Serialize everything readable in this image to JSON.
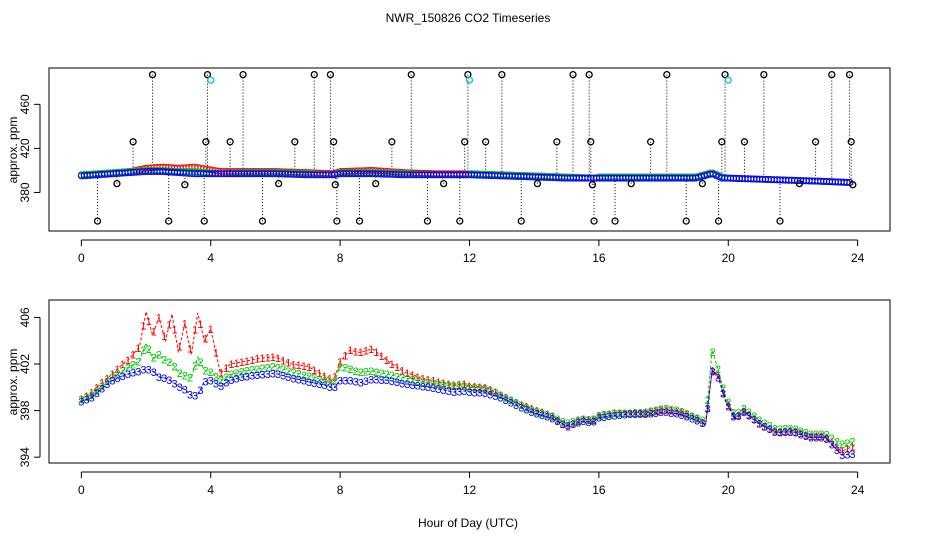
{
  "title": "NWR_150826  CO2 Timeseries",
  "xlabel": "Hour of Day (UTC)",
  "colors": {
    "red": "#ff0000",
    "green": "#00c800",
    "blue": "#0000ff",
    "cyan": "#00c8c8",
    "black": "#000000"
  },
  "chart_data": [
    {
      "type": "scatter",
      "name": "top-panel",
      "ylabel": "approx. ppm",
      "xlim": [
        -1,
        25
      ],
      "ylim": [
        345,
        493
      ],
      "xticks": [
        "0",
        "4",
        "8",
        "12",
        "16",
        "20",
        "24"
      ],
      "xtick_values": [
        0,
        4,
        8,
        12,
        16,
        20,
        24
      ],
      "yticks": [
        "380",
        "420",
        "460"
      ],
      "ytick_values": [
        380,
        420,
        460
      ],
      "base_series": [
        {
          "name": "1",
          "color": "red",
          "x": [
            0,
            0.5,
            1,
            1.5,
            2,
            2.5,
            3,
            3.5,
            3.9,
            4.3,
            5,
            6,
            7,
            7.8,
            8,
            9,
            10,
            11,
            11.9,
            12,
            13,
            14,
            15,
            15.9,
            16,
            17,
            18,
            19,
            19.5,
            19.8,
            20,
            21,
            22,
            23,
            23.8
          ],
          "y": [
            396,
            397,
            398,
            399,
            402,
            403,
            402,
            403,
            401,
            399,
            399,
            399,
            398,
            397,
            399,
            400,
            398,
            397,
            397,
            397,
            396,
            395,
            394,
            393,
            394,
            394,
            394,
            394,
            398,
            394,
            393,
            392,
            391,
            390,
            389
          ]
        },
        {
          "name": "2",
          "color": "green",
          "x": [
            0,
            0.5,
            1,
            1.5,
            2,
            2.5,
            3,
            3.5,
            3.9,
            4.3,
            5,
            6,
            7,
            7.8,
            8,
            9,
            10,
            11,
            11.9,
            12,
            13,
            14,
            15,
            15.9,
            16,
            17,
            18,
            19,
            19.5,
            19.8,
            20,
            21,
            22,
            23,
            23.8
          ],
          "y": [
            396,
            397,
            398,
            399,
            400,
            400,
            399,
            399,
            398,
            397,
            398,
            398,
            397,
            396,
            398,
            398,
            397,
            396,
            396,
            397,
            396,
            395,
            394,
            393,
            394,
            394,
            394,
            394,
            398,
            394,
            393,
            392,
            391,
            390,
            389
          ]
        },
        {
          "name": "3",
          "color": "blue",
          "x": [
            0,
            0.5,
            1,
            1.5,
            2,
            2.5,
            3,
            3.5,
            3.9,
            4.3,
            5,
            6,
            7,
            7.8,
            8,
            9,
            10,
            11,
            11.9,
            12,
            13,
            14,
            15,
            15.9,
            16,
            17,
            18,
            19,
            19.5,
            19.8,
            20,
            21,
            22,
            23,
            23.8
          ],
          "y": [
            395,
            396,
            397,
            398,
            399,
            399,
            398,
            397,
            397,
            397,
            397,
            397,
            396,
            396,
            397,
            397,
            396,
            396,
            396,
            396,
            395,
            394,
            393,
            393,
            393,
            393,
            393,
            393,
            397,
            393,
            393,
            392,
            391,
            390,
            389
          ]
        }
      ],
      "markers": {
        "color": "black",
        "x": [
          0.5,
          1.1,
          1.6,
          2.2,
          2.7,
          3.2,
          3.8,
          3.85,
          3.9,
          4.6,
          5.0,
          5.6,
          6.1,
          6.6,
          7.2,
          7.7,
          7.8,
          7.85,
          7.9,
          8.6,
          9.1,
          9.6,
          10.2,
          10.7,
          11.2,
          11.7,
          11.85,
          11.95,
          12.5,
          13.0,
          13.6,
          14.1,
          14.7,
          15.2,
          15.7,
          15.75,
          15.8,
          15.85,
          16.5,
          17.0,
          17.6,
          18.1,
          18.7,
          19.2,
          19.7,
          19.8,
          19.9,
          20.5,
          21.1,
          21.6,
          22.2,
          22.7,
          23.2,
          23.75,
          23.8,
          23.85
        ],
        "y": [
          354,
          388,
          426,
          487,
          354,
          387,
          354,
          426,
          487,
          426,
          487,
          354,
          388,
          426,
          487,
          487,
          426,
          387,
          354,
          354,
          388,
          426,
          487,
          354,
          388,
          354,
          426,
          487,
          426,
          487,
          354,
          388,
          426,
          487,
          487,
          426,
          387,
          354,
          354,
          388,
          426,
          487,
          354,
          388,
          354,
          426,
          487,
          426,
          487,
          354,
          388,
          426,
          487,
          487,
          426,
          387
        ]
      },
      "cyan_markers": {
        "color": "cyan",
        "x": [
          4.0,
          12.0,
          20.0
        ],
        "y": [
          482,
          482,
          482
        ]
      }
    },
    {
      "type": "line",
      "name": "bottom-panel",
      "ylabel": "approx. ppm",
      "xlim": [
        -1,
        25
      ],
      "ylim": [
        393.5,
        407.5
      ],
      "xticks": [
        "0",
        "4",
        "8",
        "12",
        "16",
        "20",
        "24"
      ],
      "xtick_values": [
        0,
        4,
        8,
        12,
        16,
        20,
        24
      ],
      "yticks": [
        "394",
        "398",
        "402",
        "406"
      ],
      "ytick_values": [
        394,
        398,
        402,
        406
      ],
      "series": [
        {
          "name": "1",
          "color": "red",
          "x": [
            0,
            0.3,
            0.6,
            0.9,
            1.2,
            1.5,
            1.8,
            2.0,
            2.2,
            2.4,
            2.6,
            2.8,
            3.0,
            3.2,
            3.4,
            3.6,
            3.8,
            4.0,
            4.3,
            4.6,
            5.0,
            5.5,
            6.0,
            6.5,
            7.0,
            7.5,
            7.8,
            8.0,
            8.3,
            8.6,
            9.0,
            9.5,
            10.0,
            10.5,
            11.0,
            11.5,
            11.9,
            12.0,
            12.5,
            13.0,
            13.5,
            14.0,
            14.5,
            15.0,
            15.5,
            15.8,
            16.0,
            16.5,
            17.0,
            17.5,
            18.0,
            18.5,
            19.0,
            19.3,
            19.5,
            19.7,
            19.9,
            20.2,
            20.5,
            21.0,
            21.5,
            22.0,
            22.5,
            23.0,
            23.5,
            23.9
          ],
          "y": [
            399,
            399.5,
            400.3,
            401,
            401.8,
            402.5,
            403.5,
            406.5,
            404.5,
            406,
            404,
            406.3,
            403,
            405.5,
            402.8,
            406.4,
            404,
            405,
            401.2,
            402,
            402.2,
            402.5,
            402.6,
            402,
            401.8,
            401,
            400.6,
            402.2,
            403.2,
            403,
            403.3,
            402.2,
            401.3,
            400.8,
            400.5,
            400.2,
            400.3,
            400.1,
            400,
            399.3,
            398.6,
            398.1,
            397.6,
            396.6,
            397.3,
            397.1,
            397.6,
            397.8,
            397.8,
            397.8,
            398.1,
            397.9,
            397.4,
            396.8,
            401.5,
            401,
            399,
            397.4,
            398,
            396.8,
            396.2,
            396.3,
            395.8,
            395.8,
            394.5,
            395
          ]
        },
        {
          "name": "2",
          "color": "green",
          "x": [
            0,
            0.3,
            0.6,
            0.9,
            1.2,
            1.5,
            1.8,
            2.0,
            2.2,
            2.4,
            2.6,
            2.8,
            3.0,
            3.2,
            3.4,
            3.6,
            3.8,
            4.0,
            4.3,
            4.6,
            5.0,
            5.5,
            6.0,
            6.5,
            7.0,
            7.5,
            7.8,
            8.0,
            8.3,
            8.6,
            9.0,
            9.5,
            10.0,
            10.5,
            11.0,
            11.5,
            11.9,
            12.0,
            12.5,
            13.0,
            13.5,
            14.0,
            14.5,
            15.0,
            15.5,
            15.8,
            16.0,
            16.5,
            17.0,
            17.5,
            18.0,
            18.5,
            19.0,
            19.3,
            19.5,
            19.7,
            19.9,
            20.2,
            20.5,
            21.0,
            21.5,
            22.0,
            22.5,
            23.0,
            23.5,
            23.9
          ],
          "y": [
            399,
            399.3,
            400,
            400.8,
            401.3,
            401.8,
            402.3,
            403.8,
            402.5,
            402.8,
            402.3,
            402.1,
            401.3,
            401,
            400.8,
            402.6,
            401.5,
            401.3,
            400.6,
            401.1,
            401.4,
            401.6,
            401.8,
            401.3,
            401,
            400.6,
            400.3,
            401.8,
            401.6,
            401.3,
            401.4,
            401.1,
            400.8,
            400.5,
            400.3,
            400.1,
            400.1,
            400,
            399.9,
            399.3,
            398.6,
            398,
            397.6,
            396.9,
            397.3,
            397.2,
            397.6,
            397.8,
            397.8,
            397.9,
            398.2,
            398,
            397.4,
            397.1,
            403.2,
            401.4,
            399.3,
            397.6,
            398.2,
            397.1,
            396.4,
            396.5,
            396,
            396,
            395.1,
            395.4
          ]
        },
        {
          "name": "3",
          "color": "blue",
          "x": [
            0,
            0.3,
            0.6,
            0.9,
            1.2,
            1.5,
            1.8,
            2.0,
            2.2,
            2.4,
            2.6,
            2.8,
            3.0,
            3.2,
            3.4,
            3.6,
            3.8,
            4.0,
            4.3,
            4.6,
            5.0,
            5.5,
            6.0,
            6.5,
            7.0,
            7.5,
            7.8,
            8.0,
            8.3,
            8.6,
            9.0,
            9.5,
            10.0,
            10.5,
            11.0,
            11.5,
            11.9,
            12.0,
            12.5,
            13.0,
            13.5,
            14.0,
            14.5,
            15.0,
            15.5,
            15.8,
            16.0,
            16.5,
            17.0,
            17.5,
            18.0,
            18.5,
            19.0,
            19.3,
            19.5,
            19.7,
            19.9,
            20.2,
            20.5,
            21.0,
            21.5,
            22.0,
            22.5,
            23.0,
            23.5,
            23.9
          ],
          "y": [
            398.8,
            399.1,
            399.8,
            400.5,
            400.9,
            401.2,
            401.4,
            401.6,
            401.4,
            400.9,
            400.8,
            400.5,
            400.1,
            399.8,
            399.3,
            399.3,
            400.5,
            400.6,
            400.1,
            400.6,
            400.9,
            401.1,
            401.2,
            400.8,
            400.5,
            400.2,
            399.9,
            400.6,
            400.6,
            400.4,
            400.7,
            400.6,
            400.3,
            400.1,
            399.9,
            399.6,
            399.7,
            399.6,
            399.5,
            399.1,
            398.4,
            397.8,
            397.4,
            396.7,
            397.1,
            397.0,
            397.4,
            397.6,
            397.7,
            397.7,
            397.9,
            397.7,
            397.2,
            396.8,
            401.4,
            400.8,
            398.9,
            397.3,
            397.9,
            396.8,
            396.1,
            396.2,
            395.7,
            395.7,
            394.2,
            394.3
          ]
        }
      ]
    }
  ]
}
